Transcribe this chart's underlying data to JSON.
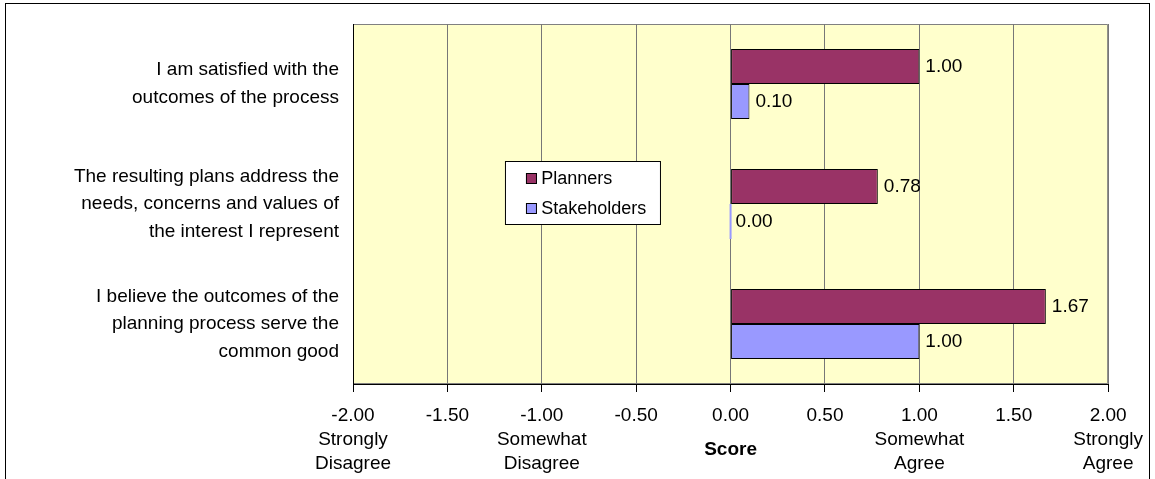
{
  "chart_data": {
    "type": "bar",
    "orientation": "horizontal",
    "categories": [
      "I am satisfied with the\noutcomes of the process",
      "The resulting plans address the\nneeds, concerns and values of\nthe interest I represent",
      "I believe the outcomes of the\nplanning process serve the\ncommon good"
    ],
    "series": [
      {
        "name": "Planners",
        "color": "#993366",
        "values": [
          1.0,
          0.78,
          1.67
        ],
        "value_labels": [
          "1.00",
          "0.78",
          "1.67"
        ]
      },
      {
        "name": "Stakeholders",
        "color": "#9999ff",
        "values": [
          0.1,
          0.0,
          1.0
        ],
        "value_labels": [
          "0.10",
          "0.00",
          "1.00"
        ]
      }
    ],
    "xlabel": "Score",
    "xlim": [
      -2,
      2
    ],
    "xticks": [
      {
        "value": -2,
        "label": "-2.00\nStrongly\nDisagree"
      },
      {
        "value": -1.5,
        "label": "-1.50"
      },
      {
        "value": -1,
        "label": "-1.00\nSomewhat\nDisagree"
      },
      {
        "value": -0.5,
        "label": "-0.50"
      },
      {
        "value": 0,
        "label": "0.00"
      },
      {
        "value": 0.5,
        "label": "0.50"
      },
      {
        "value": 1,
        "label": "1.00\nSomewhat\nAgree"
      },
      {
        "value": 1.5,
        "label": "1.50"
      },
      {
        "value": 2,
        "label": "2.00\nStrongly\nAgree"
      }
    ],
    "grid": "x",
    "legend": "left"
  }
}
